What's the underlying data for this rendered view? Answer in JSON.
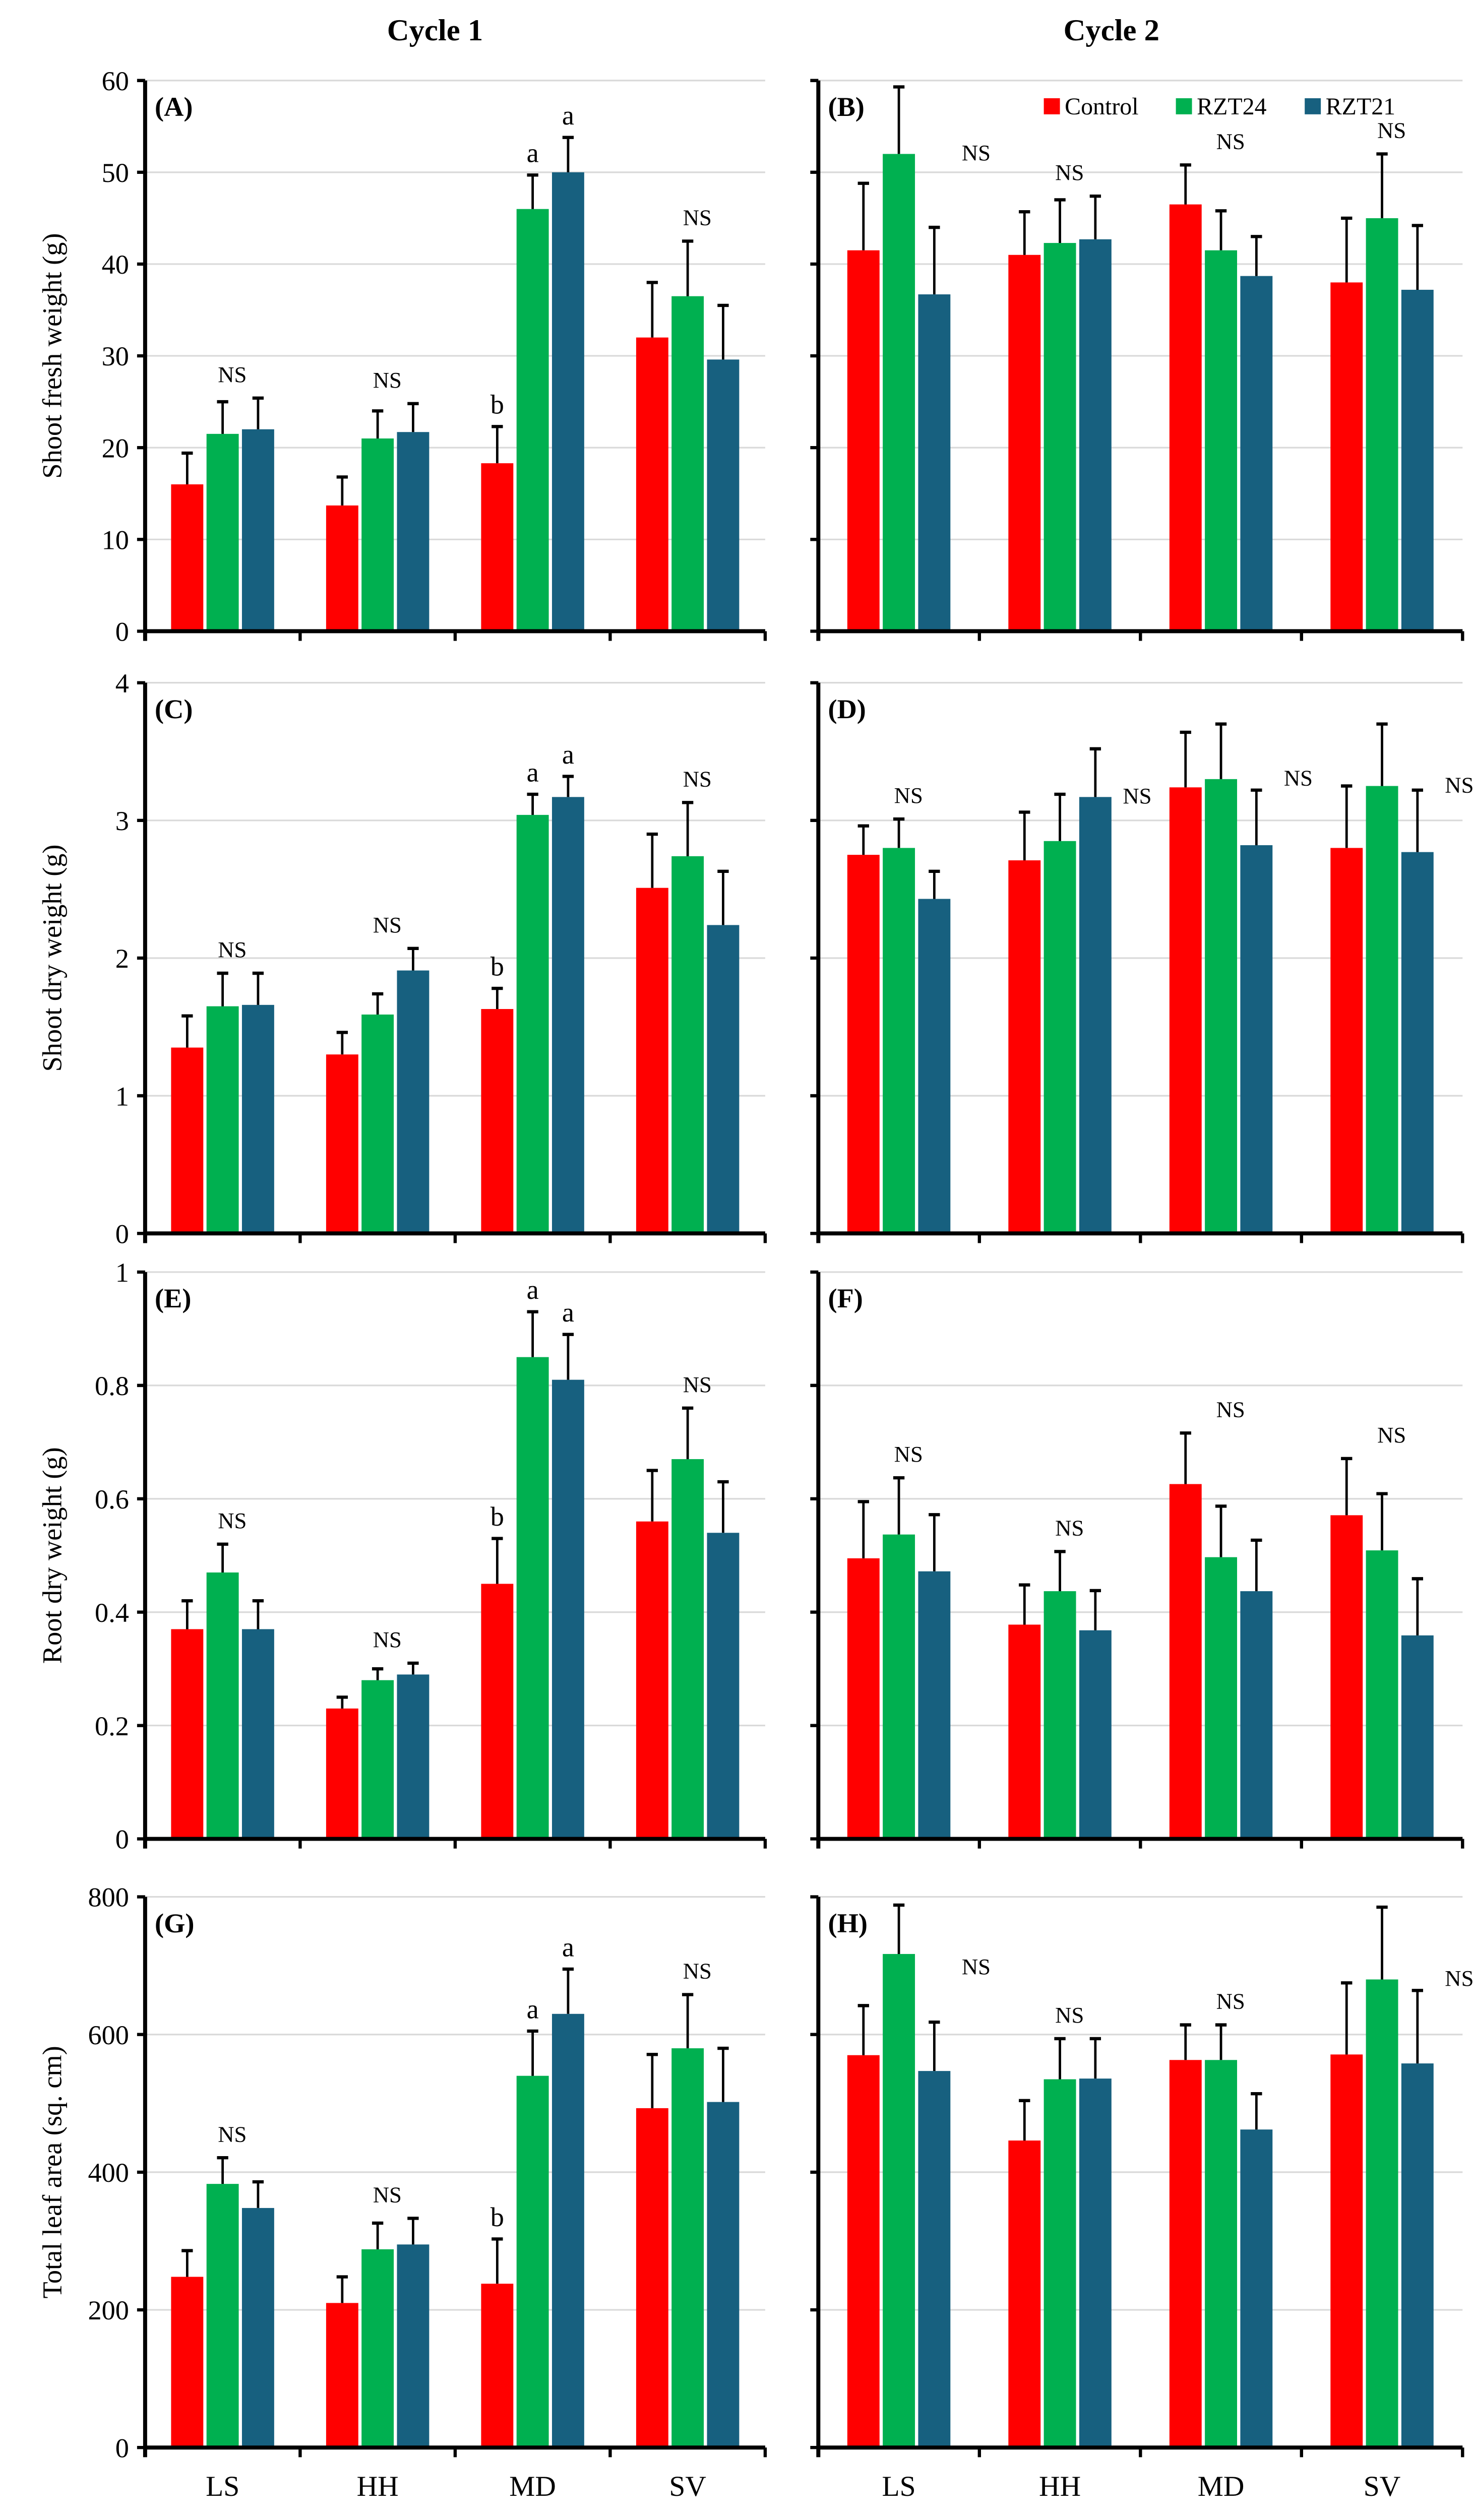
{
  "column_titles": [
    "Cycle 1",
    "Cycle 2"
  ],
  "legend": [
    {
      "name": "Control",
      "color": "#ff0000"
    },
    {
      "name": "RZT24",
      "color": "#00b050"
    },
    {
      "name": "RZT21",
      "color": "#17607f"
    }
  ],
  "chart_data": [
    {
      "panel": "(A)",
      "type": "bar",
      "cycle": "Cycle 1",
      "ylabel": "Shoot fresh weight (g)",
      "ylim": [
        0,
        60
      ],
      "yticks": [
        "0",
        "10",
        "20",
        "30",
        "40",
        "50",
        "60"
      ],
      "categories": [
        "LS",
        "HH",
        "MD",
        "SV"
      ],
      "series": [
        {
          "name": "Control",
          "values": [
            16.0,
            13.7,
            18.3,
            32.0
          ],
          "errors": [
            3.4,
            3.1,
            4.0,
            6.0
          ]
        },
        {
          "name": "RZT24",
          "values": [
            21.5,
            21.0,
            46.0,
            36.5
          ],
          "errors": [
            3.5,
            3.0,
            3.7,
            6.0
          ]
        },
        {
          "name": "RZT21",
          "values": [
            22.0,
            21.7,
            50.0,
            29.6
          ],
          "errors": [
            3.4,
            3.1,
            3.8,
            5.9
          ]
        }
      ],
      "significance": [
        [
          "NS"
        ],
        [
          "NS"
        ],
        [
          "b",
          "a",
          "a"
        ],
        [
          "NS"
        ]
      ]
    },
    {
      "panel": "(B)",
      "type": "bar",
      "cycle": "Cycle 2",
      "ylabel": "",
      "ylim": [
        0,
        60
      ],
      "yticks": [],
      "categories": [
        "LS",
        "HH",
        "MD",
        "SV"
      ],
      "series": [
        {
          "name": "Control",
          "values": [
            41.5,
            41.0,
            46.5,
            38.0
          ],
          "errors": [
            7.3,
            4.7,
            4.3,
            7.0
          ]
        },
        {
          "name": "RZT24",
          "values": [
            52.0,
            42.3,
            41.5,
            45.0
          ],
          "errors": [
            7.3,
            4.7,
            4.3,
            7.0
          ]
        },
        {
          "name": "RZT21",
          "values": [
            36.7,
            42.7,
            38.7,
            37.2
          ],
          "errors": [
            7.3,
            4.7,
            4.3,
            7.0
          ]
        }
      ],
      "significance": [
        [
          "NS"
        ],
        [
          "NS"
        ],
        [
          "NS"
        ],
        [
          "NS"
        ]
      ]
    },
    {
      "panel": "(C)",
      "type": "bar",
      "cycle": "Cycle 1",
      "ylabel": "Shoot dry weight (g)",
      "ylim": [
        0,
        4
      ],
      "yticks": [
        "0",
        "1",
        "2",
        "3",
        "4"
      ],
      "categories": [
        "LS",
        "HH",
        "MD",
        "SV"
      ],
      "series": [
        {
          "name": "Control",
          "values": [
            1.35,
            1.3,
            1.63,
            2.51
          ],
          "errors": [
            0.23,
            0.16,
            0.15,
            0.39
          ]
        },
        {
          "name": "RZT24",
          "values": [
            1.65,
            1.59,
            3.04,
            2.74
          ],
          "errors": [
            0.24,
            0.15,
            0.15,
            0.39
          ]
        },
        {
          "name": "RZT21",
          "values": [
            1.66,
            1.91,
            3.17,
            2.24
          ],
          "errors": [
            0.23,
            0.16,
            0.15,
            0.39
          ]
        }
      ],
      "significance": [
        [
          "NS"
        ],
        [
          "NS"
        ],
        [
          "b",
          "a",
          "a"
        ],
        [
          "NS"
        ]
      ]
    },
    {
      "panel": "(D)",
      "type": "bar",
      "cycle": "Cycle 2",
      "ylabel": "",
      "ylim": [
        0,
        4
      ],
      "yticks": [],
      "categories": [
        "LS",
        "HH",
        "MD",
        "SV"
      ],
      "series": [
        {
          "name": "Control",
          "values": [
            2.75,
            2.71,
            3.24,
            2.8
          ],
          "errors": [
            0.21,
            0.35,
            0.4,
            0.45
          ]
        },
        {
          "name": "RZT24",
          "values": [
            2.8,
            2.85,
            3.3,
            3.25
          ],
          "errors": [
            0.21,
            0.34,
            0.4,
            0.45
          ]
        },
        {
          "name": "RZT21",
          "values": [
            2.43,
            3.17,
            2.82,
            2.77
          ],
          "errors": [
            0.2,
            0.35,
            0.4,
            0.45
          ]
        }
      ],
      "significance": [
        [
          "NS"
        ],
        [
          "NS"
        ],
        [
          "NS"
        ],
        [
          "NS"
        ]
      ]
    },
    {
      "panel": "(E)",
      "type": "bar",
      "cycle": "Cycle 1",
      "ylabel": "Root dry weight (g)",
      "ylim": [
        0,
        1
      ],
      "yticks": [
        "0",
        "0.2",
        "0.4",
        "0.6",
        "0.8",
        "1"
      ],
      "categories": [
        "LS",
        "HH",
        "MD",
        "SV"
      ],
      "series": [
        {
          "name": "Control",
          "values": [
            0.37,
            0.23,
            0.45,
            0.56
          ],
          "errors": [
            0.05,
            0.02,
            0.08,
            0.09
          ]
        },
        {
          "name": "RZT24",
          "values": [
            0.47,
            0.28,
            0.85,
            0.67
          ],
          "errors": [
            0.05,
            0.02,
            0.08,
            0.09
          ]
        },
        {
          "name": "RZT21",
          "values": [
            0.37,
            0.29,
            0.81,
            0.54
          ],
          "errors": [
            0.05,
            0.02,
            0.08,
            0.09
          ]
        }
      ],
      "significance": [
        [
          "NS"
        ],
        [
          "NS"
        ],
        [
          "b",
          "a",
          "a"
        ],
        [
          "NS"
        ]
      ]
    },
    {
      "panel": "(F)",
      "type": "bar",
      "cycle": "Cycle 2",
      "ylabel": "",
      "ylim": [
        0,
        1
      ],
      "yticks": [],
      "categories": [
        "LS",
        "HH",
        "MD",
        "SV"
      ],
      "series": [
        {
          "name": "Control",
          "values": [
            0.495,
            0.378,
            0.626,
            0.571
          ],
          "errors": [
            0.1,
            0.07,
            0.09,
            0.1
          ]
        },
        {
          "name": "RZT24",
          "values": [
            0.537,
            0.437,
            0.497,
            0.509
          ],
          "errors": [
            0.1,
            0.07,
            0.09,
            0.1
          ]
        },
        {
          "name": "RZT21",
          "values": [
            0.472,
            0.368,
            0.437,
            0.359
          ],
          "errors": [
            0.1,
            0.07,
            0.09,
            0.1
          ]
        }
      ],
      "significance": [
        [
          "NS"
        ],
        [
          "NS"
        ],
        [
          "NS"
        ],
        [
          "NS"
        ]
      ]
    },
    {
      "panel": "(G)",
      "type": "bar",
      "cycle": "Cycle 1",
      "ylabel": "Total leaf area (sq. cm)",
      "ylim": [
        0,
        800
      ],
      "yticks": [
        "0",
        "200",
        "400",
        "600",
        "800"
      ],
      "categories": [
        "LS",
        "HH",
        "MD",
        "SV"
      ],
      "series": [
        {
          "name": "Control",
          "values": [
            248,
            210,
            238,
            493
          ],
          "errors": [
            38,
            38,
            65,
            78
          ]
        },
        {
          "name": "RZT24",
          "values": [
            383,
            288,
            540,
            580
          ],
          "errors": [
            38,
            38,
            65,
            78
          ]
        },
        {
          "name": "RZT21",
          "values": [
            348,
            295,
            630,
            502
          ],
          "errors": [
            38,
            38,
            65,
            78
          ]
        }
      ],
      "significance": [
        [
          "NS"
        ],
        [
          "NS"
        ],
        [
          "b",
          "a",
          "a"
        ],
        [
          "NS"
        ]
      ]
    },
    {
      "panel": "(H)",
      "type": "bar",
      "cycle": "Cycle 2",
      "ylabel": "",
      "ylim": [
        0,
        800
      ],
      "yticks": [],
      "categories": [
        "LS",
        "HH",
        "MD",
        "SV"
      ],
      "series": [
        {
          "name": "Control",
          "values": [
            570,
            446,
            563,
            571
          ],
          "errors": [
            72,
            58,
            51,
            104
          ]
        },
        {
          "name": "RZT24",
          "values": [
            717,
            535,
            563,
            680
          ],
          "errors": [
            71,
            59,
            51,
            105
          ]
        },
        {
          "name": "RZT21",
          "values": [
            547,
            536,
            462,
            558
          ],
          "errors": [
            71,
            58,
            52,
            106
          ]
        }
      ],
      "significance": [
        [
          "NS"
        ],
        [
          "NS"
        ],
        [
          "NS"
        ],
        [
          "NS"
        ]
      ]
    }
  ]
}
